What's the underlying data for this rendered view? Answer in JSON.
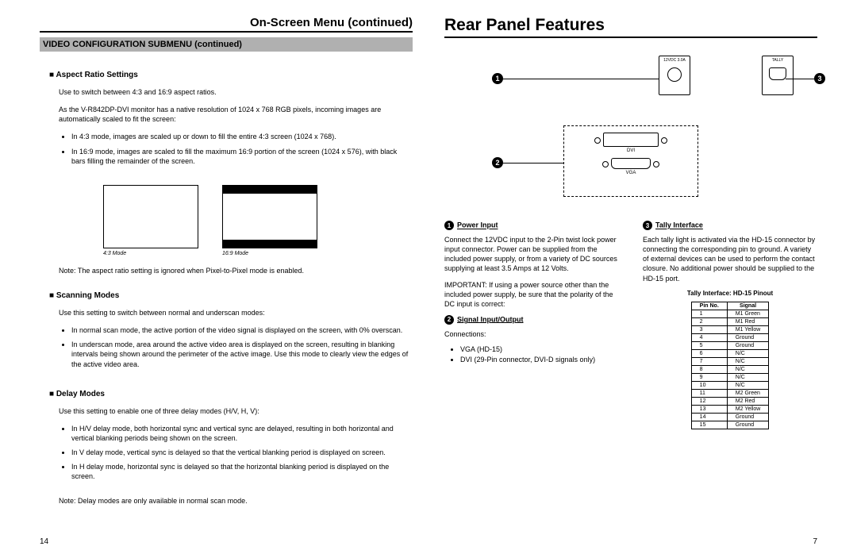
{
  "left": {
    "pageTitle": "On-Screen Menu (continued)",
    "submenuHeader": "VIDEO CONFIGURATION SUBMENU (continued)",
    "aspect": {
      "heading": "Aspect Ratio Settings",
      "intro": "Use to switch between 4:3 and 16:9 aspect ratios.",
      "desc": "As the V-R842DP-DVI monitor has a native resolution of 1024 x 768 RGB pixels, incoming images are automatically scaled to fit the screen:",
      "b1": "In 4:3 mode, images are scaled up or down to fill the entire 4:3 screen (1024 x 768).",
      "b2": "In 16:9 mode, images are scaled to fill the maximum 16:9 portion of the screen (1024 x 576), with black bars filling the remainder of the screen.",
      "cap43": "4:3 Mode",
      "cap169": "16:9 Mode",
      "note": "Note: The aspect ratio setting is ignored when Pixel-to-Pixel mode is enabled."
    },
    "scan": {
      "heading": "Scanning Modes",
      "intro": "Use this setting to switch between normal and underscan modes:",
      "b1": "In normal scan mode, the active portion of the video signal is displayed on the screen, with 0% overscan.",
      "b2": "In underscan mode, area around the active video area is displayed on the screen, resulting in blanking intervals being shown around the perimeter of the active image. Use this mode to clearly view the edges of the active video area."
    },
    "delay": {
      "heading": "Delay Modes",
      "intro": "Use this setting to enable one of three delay modes (H/V, H, V):",
      "b1": "In H/V delay mode, both horizontal sync and vertical sync are delayed, resulting in both horizontal and vertical blanking periods being shown on the screen.",
      "b2": "In V delay mode, vertical sync is delayed so that the vertical blanking period is displayed on screen.",
      "b3": "In H delay mode, horizontal sync is delayed so that the horizontal blanking period is displayed on the screen.",
      "note": "Note: Delay modes are only available in normal scan mode."
    },
    "pageNum": "14"
  },
  "right": {
    "pageTitle": "Rear Panel Features",
    "diagram": {
      "powerLabel": "12VDC\n3.0A",
      "tallyLabel": "TALLY",
      "dviLabel": "DVI",
      "vgaLabel": "VGA"
    },
    "power": {
      "heading": "Power Input",
      "p1": "Connect the 12VDC input to the 2-Pin twist lock power input connector. Power can be supplied from the included power supply, or from a variety of DC sources supplying at least 3.5 Amps at 12 Volts.",
      "p2": "IMPORTANT: If using a power source other than the included power supply, be sure that the polarity of the DC input is correct:"
    },
    "signal": {
      "heading": "Signal Input/Output",
      "p1": "Connections:",
      "li1": "VGA (HD-15)",
      "li2": "DVI (29-Pin connector, DVI-D signals only)"
    },
    "tally": {
      "heading": "Tally Interface",
      "p1": "Each tally light is activated via the HD-15 connector by connecting the corresponding pin to ground. A variety of external devices can be used to perform the contact closure. No additional power should be supplied to the HD-15 port.",
      "tableTitle": "Tally Interface: HD-15 Pinout",
      "cols": [
        "Pin No.",
        "Signal"
      ],
      "rows": [
        [
          "1",
          "M1 Green"
        ],
        [
          "2",
          "M1 Red"
        ],
        [
          "3",
          "M1 Yellow"
        ],
        [
          "4",
          "Ground"
        ],
        [
          "5",
          "Ground"
        ],
        [
          "6",
          "N/C"
        ],
        [
          "7",
          "N/C"
        ],
        [
          "8",
          "N/C"
        ],
        [
          "9",
          "N/C"
        ],
        [
          "10",
          "N/C"
        ],
        [
          "11",
          "M2 Green"
        ],
        [
          "12",
          "M2 Red"
        ],
        [
          "13",
          "M2 Yellow"
        ],
        [
          "14",
          "Ground"
        ],
        [
          "15",
          "Ground"
        ]
      ]
    },
    "pageNum": "7"
  }
}
